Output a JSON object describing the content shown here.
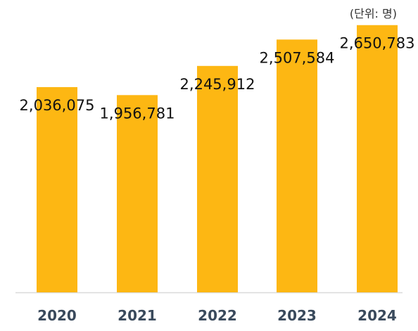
{
  "unit_text": "(단위: 명)",
  "colors": {
    "bar": "#FDB713",
    "baseline": "#D9D9D9",
    "value_text": "#111111",
    "tick_text": "#3A4A5C"
  },
  "chart_data": {
    "type": "bar",
    "categories": [
      "2020",
      "2021",
      "2022",
      "2023",
      "2024"
    ],
    "values": [
      2036075,
      1956781,
      2245912,
      2507584,
      2650783
    ],
    "value_labels": [
      "2,036,075",
      "1,956,781",
      "2,245,912",
      "2,507,584",
      "2,650,783"
    ],
    "ylim": [
      0,
      2900000
    ],
    "grid": false,
    "legend": "none"
  }
}
